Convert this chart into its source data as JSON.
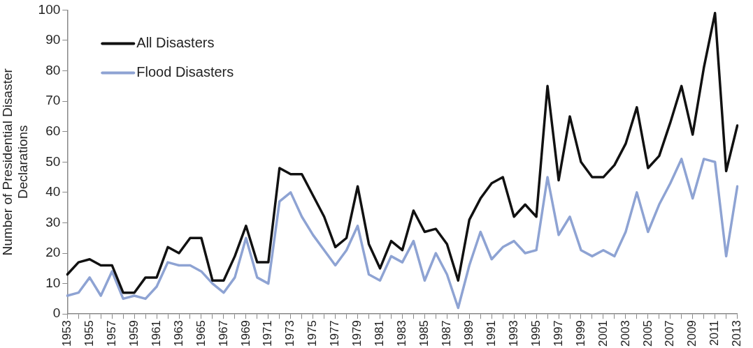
{
  "chart_data": {
    "type": "line",
    "ylabel": "Number of Presidential Disaster Declarations",
    "categories": [
      "1953",
      null,
      "1955",
      null,
      "1957",
      null,
      "1959",
      null,
      "1961",
      null,
      "1963",
      null,
      "1965",
      null,
      "1967",
      null,
      "1969",
      null,
      "1971",
      null,
      "1973",
      null,
      "1975",
      null,
      "1977",
      null,
      "1979",
      null,
      "1981",
      null,
      "1983",
      null,
      "1985",
      null,
      "1987",
      null,
      "1989",
      null,
      "1991",
      null,
      "1993",
      null,
      "1995",
      null,
      "1997",
      null,
      "1999",
      null,
      "2001",
      null,
      "2003",
      null,
      "2005",
      null,
      "2007",
      null,
      "2009",
      null,
      "2011",
      null,
      "2013"
    ],
    "series": [
      {
        "name": "All Disasters",
        "color": "#111111",
        "values": [
          13,
          17,
          18,
          16,
          16,
          7,
          7,
          12,
          12,
          22,
          20,
          25,
          25,
          11,
          11,
          19,
          29,
          17,
          17,
          48,
          46,
          46,
          39,
          32,
          22,
          25,
          42,
          23,
          15,
          24,
          21,
          34,
          27,
          28,
          23,
          11,
          31,
          38,
          43,
          45,
          32,
          36,
          32,
          75,
          44,
          65,
          50,
          45,
          45,
          49,
          56,
          68,
          48,
          52,
          63,
          75,
          59,
          81,
          99,
          47,
          62
        ]
      },
      {
        "name": "Flood Disasters",
        "color": "#8ea3d3",
        "values": [
          6,
          7,
          12,
          6,
          14,
          5,
          6,
          5,
          9,
          17,
          16,
          16,
          14,
          10,
          7,
          12,
          25,
          12,
          10,
          37,
          40,
          32,
          26,
          21,
          16,
          21,
          29,
          13,
          11,
          19,
          17,
          24,
          11,
          20,
          13,
          2,
          16,
          27,
          18,
          22,
          24,
          20,
          21,
          45,
          26,
          32,
          21,
          19,
          21,
          19,
          27,
          40,
          27,
          36,
          43,
          51,
          38,
          51,
          50,
          19,
          42
        ]
      }
    ],
    "ylim": [
      0,
      100
    ],
    "yticks": [
      0,
      10,
      20,
      30,
      40,
      50,
      60,
      70,
      80,
      90,
      100
    ],
    "grid": false,
    "legend": "top left",
    "marker": "none",
    "line_style": "solid"
  }
}
